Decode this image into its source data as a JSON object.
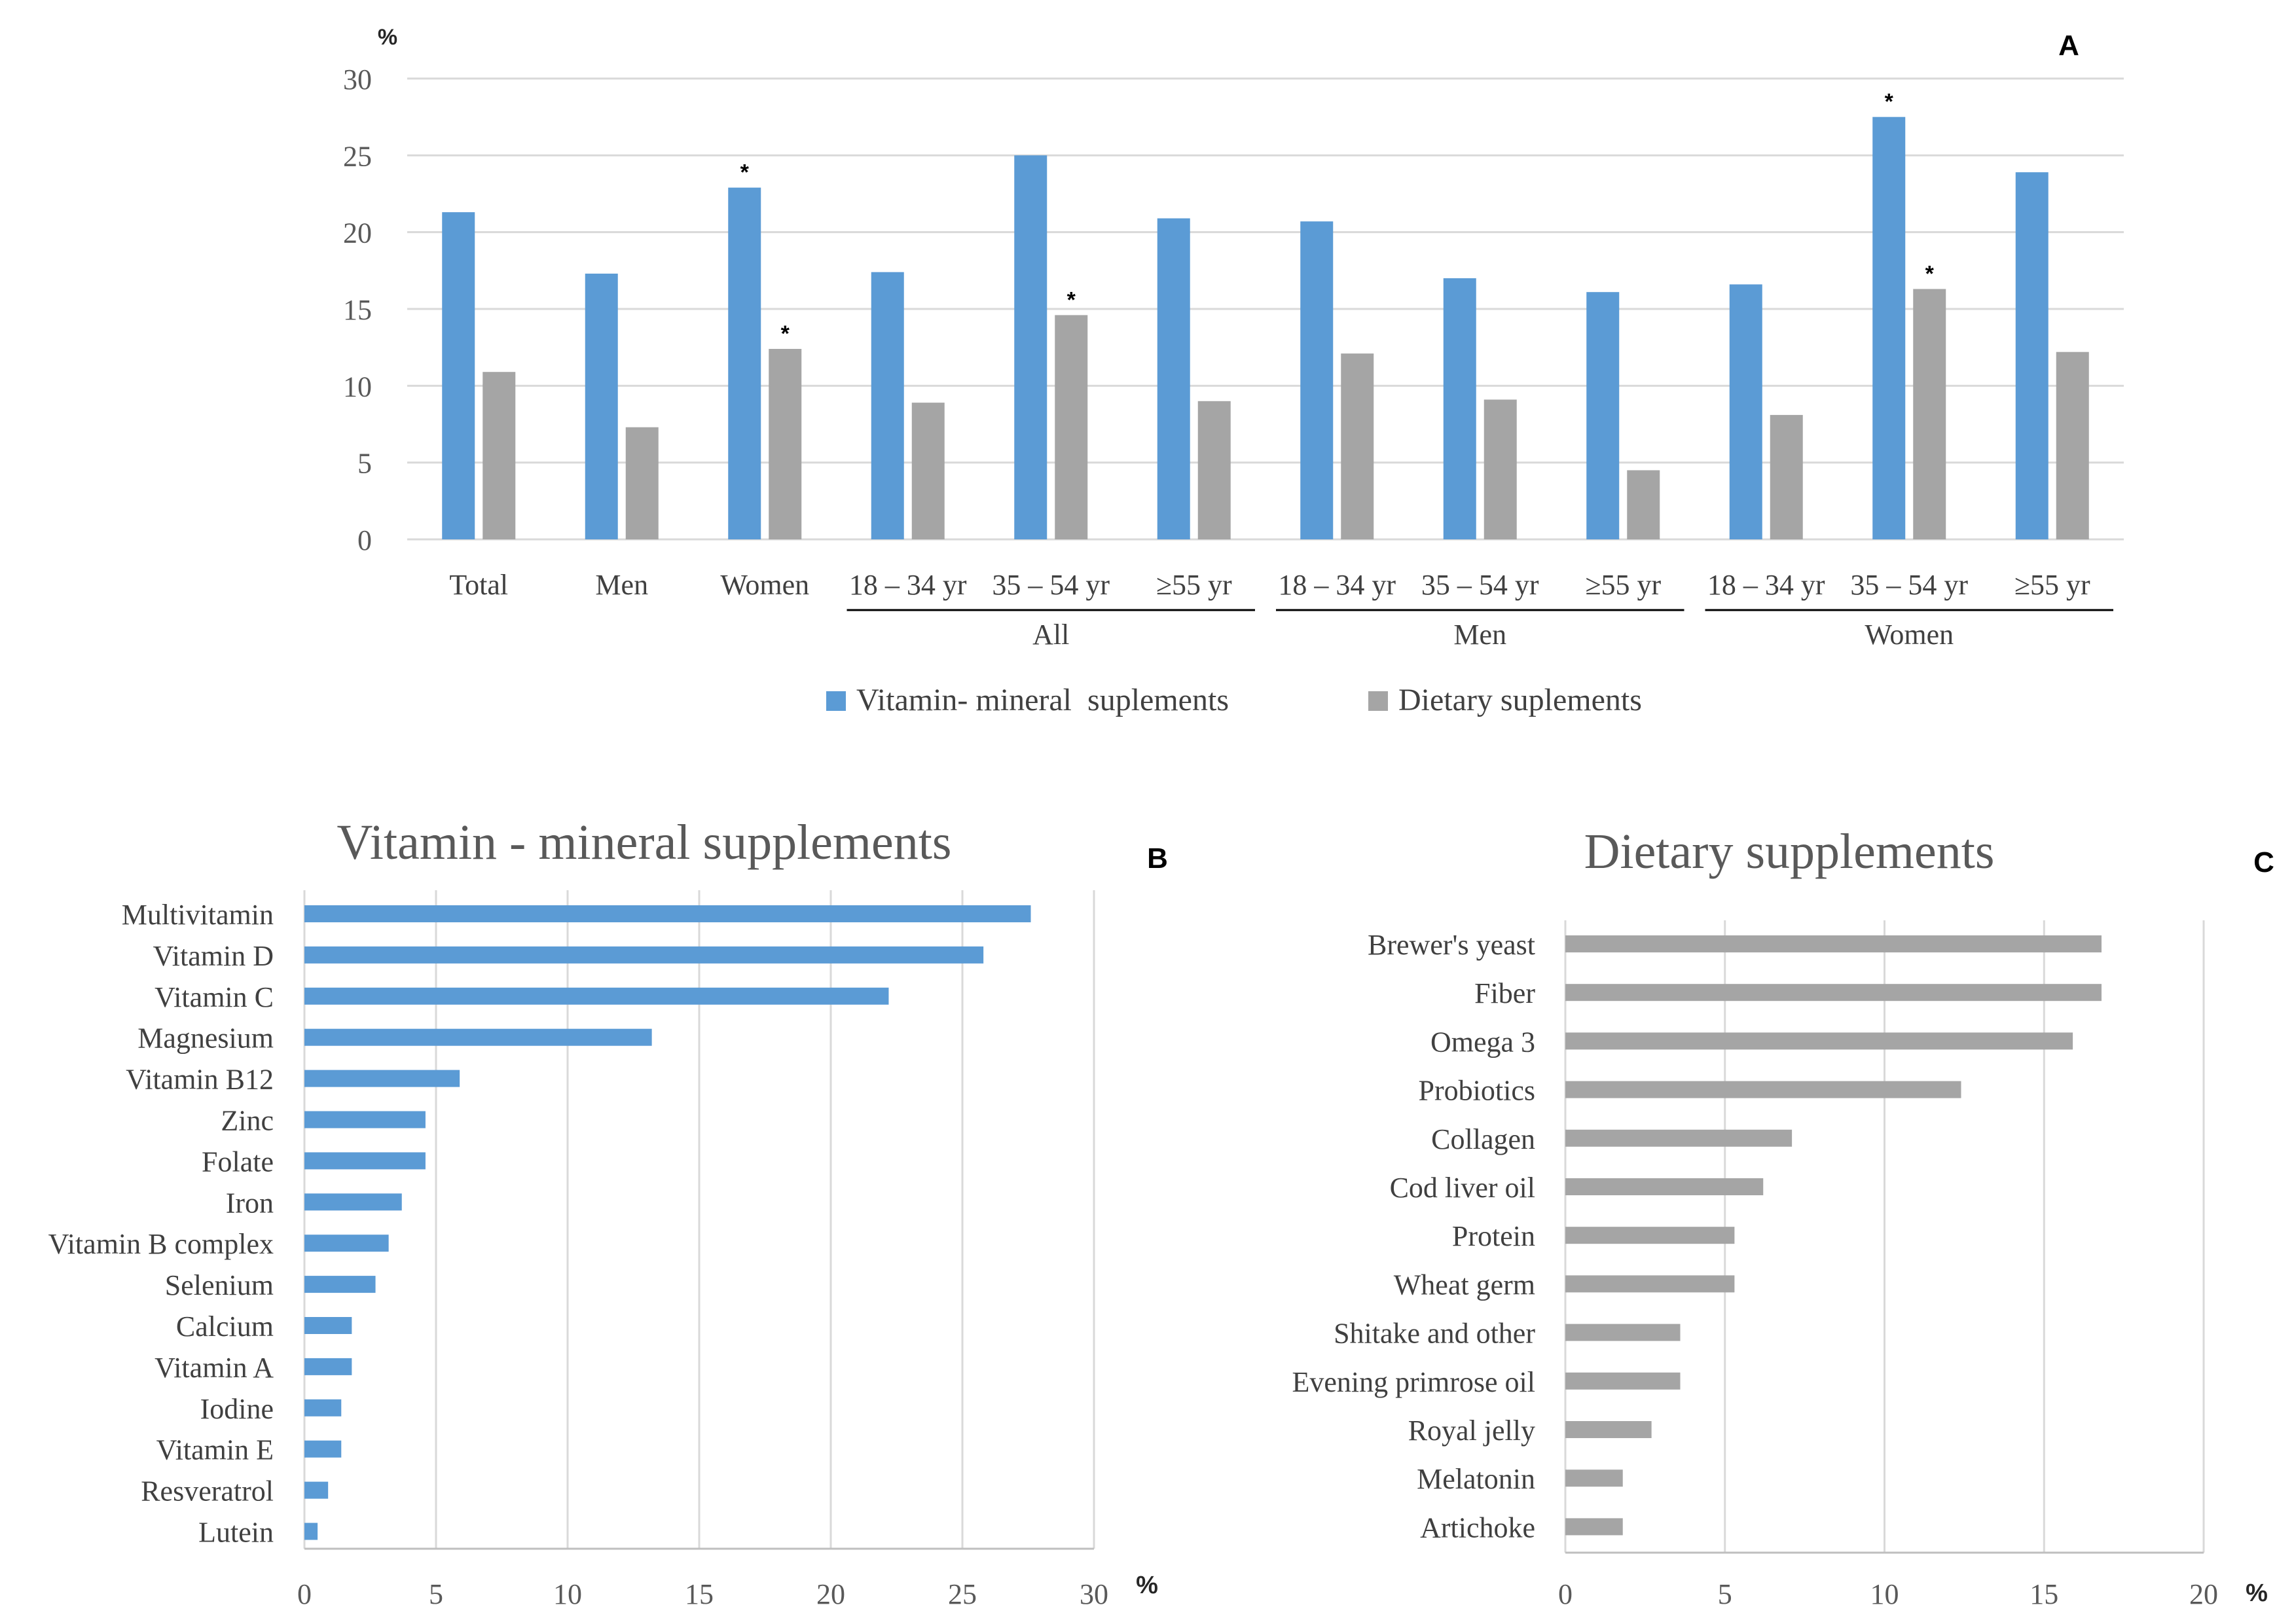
{
  "colors": {
    "blue": "#5b9bd5",
    "gray": "#a5a5a5",
    "grid": "#d9d9d9",
    "text": "#404040"
  },
  "chart_data": [
    {
      "id": "A",
      "type": "bar",
      "panel_label": "A",
      "ylabel": "%",
      "ylim": [
        0,
        30
      ],
      "yticks": [
        0,
        5,
        10,
        15,
        20,
        25,
        30
      ],
      "categories": [
        "Total",
        "Men",
        "Women",
        "18 – 34 yr",
        "35 – 54 yr",
        "≥55 yr",
        "18 – 34 yr",
        "35 – 54 yr",
        "≥55 yr",
        "18 – 34 yr",
        "35 – 54 yr",
        "≥55 yr"
      ],
      "groups": [
        {
          "label": "All",
          "start": 3,
          "end": 5
        },
        {
          "label": "Men",
          "start": 6,
          "end": 8
        },
        {
          "label": "Women",
          "start": 9,
          "end": 11
        }
      ],
      "series": [
        {
          "name": "Vitamin- mineral  suplements",
          "color": "#5b9bd5",
          "values": [
            21.3,
            17.3,
            22.9,
            17.4,
            25.0,
            20.9,
            20.7,
            17.0,
            16.1,
            16.6,
            27.5,
            23.9
          ],
          "significant": [
            false,
            false,
            true,
            false,
            false,
            false,
            false,
            false,
            false,
            false,
            true,
            false
          ]
        },
        {
          "name": "Dietary suplements",
          "color": "#a5a5a5",
          "values": [
            10.9,
            7.3,
            12.4,
            8.9,
            14.6,
            9.0,
            12.1,
            9.1,
            4.5,
            8.1,
            16.3,
            12.2
          ],
          "significant": [
            false,
            false,
            true,
            false,
            true,
            false,
            false,
            false,
            false,
            false,
            true,
            false
          ]
        }
      ],
      "sig_marker": "*"
    },
    {
      "id": "B",
      "type": "bar",
      "orientation": "horizontal",
      "panel_label": "B",
      "title": "Vitamin - mineral supplements",
      "xlabel": "%",
      "xlim": [
        0,
        30
      ],
      "xticks": [
        0,
        5,
        10,
        15,
        20,
        25,
        30
      ],
      "color": "#5b9bd5",
      "categories": [
        "Multivitamin",
        "Vitamin D",
        "Vitamin C",
        "Magnesium",
        "Vitamin B12",
        "Zinc",
        "Folate",
        "Iron",
        "Vitamin B complex",
        "Selenium",
        "Calcium",
        "Vitamin A",
        "Iodine",
        "Vitamin E",
        "Resveratrol",
        "Lutein"
      ],
      "values": [
        27.6,
        25.8,
        22.2,
        13.2,
        5.9,
        4.6,
        4.6,
        3.7,
        3.2,
        2.7,
        1.8,
        1.8,
        1.4,
        1.4,
        0.9,
        0.5
      ]
    },
    {
      "id": "C",
      "type": "bar",
      "orientation": "horizontal",
      "panel_label": "C",
      "title": "Dietary supplements",
      "xlabel": "%",
      "xlim": [
        0,
        20
      ],
      "xticks": [
        0,
        5,
        10,
        15,
        20
      ],
      "color": "#a5a5a5",
      "categories": [
        "Brewer's yeast",
        "Fiber",
        "Omega 3",
        "Probiotics",
        "Collagen",
        "Cod liver oil",
        "Protein",
        "Wheat germ",
        "Shitake and other",
        "Evening primrose oil",
        "Royal jelly",
        "Melatonin",
        "Artichoke"
      ],
      "values": [
        16.8,
        16.8,
        15.9,
        12.4,
        7.1,
        6.2,
        5.3,
        5.3,
        3.6,
        3.6,
        2.7,
        1.8,
        1.8
      ]
    }
  ]
}
